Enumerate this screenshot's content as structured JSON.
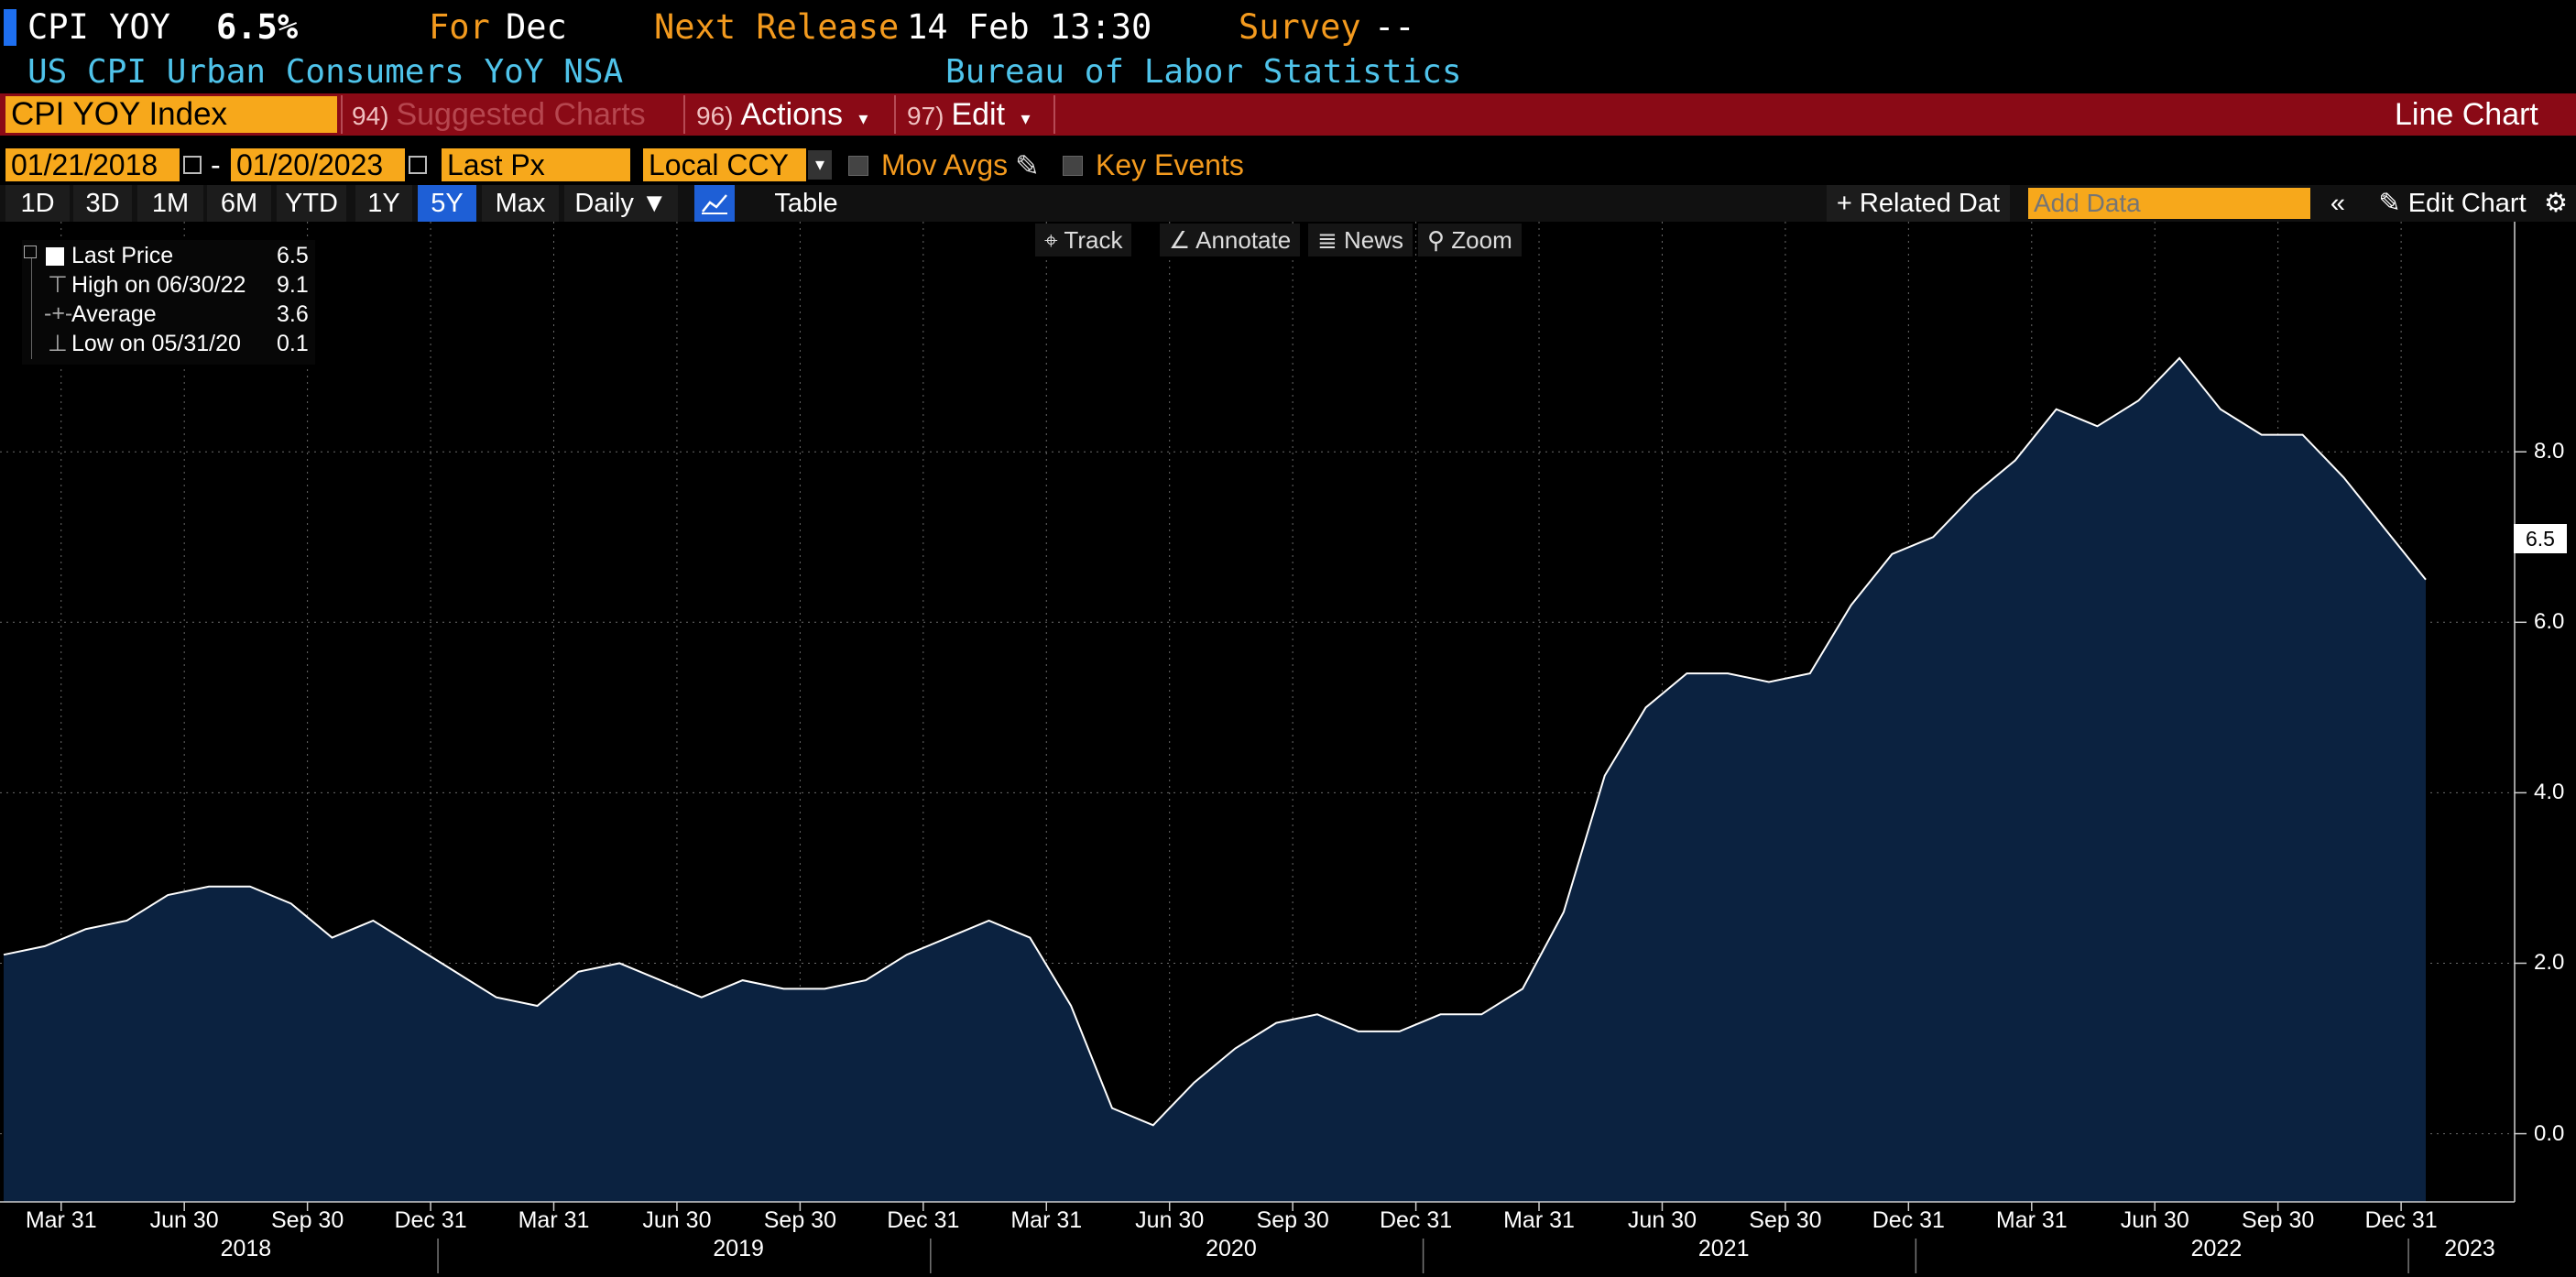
{
  "header": {
    "ticker": "CPI YOY",
    "value": "6.5%",
    "for_label": "For",
    "for_value": "Dec",
    "next_release_label": "Next Release",
    "next_release_value": "14 Feb 13:30",
    "survey_label": "Survey",
    "survey_value": "--",
    "description": "US CPI Urban Consumers YoY NSA",
    "source": "Bureau of Labor Statistics"
  },
  "command_bar": {
    "security": "CPI YOY Index",
    "suggested_num": "94)",
    "suggested_label": "Suggested Charts",
    "actions_num": "96)",
    "actions_label": "Actions",
    "edit_num": "97)",
    "edit_label": "Edit",
    "chart_type": "Line Chart"
  },
  "controls": {
    "start_date": "01/21/2018",
    "dash": "-",
    "end_date": "01/20/2023",
    "field": "Last Px",
    "currency": "Local CCY",
    "mov_avgs": "Mov Avgs",
    "key_events": "Key Events"
  },
  "range_buttons": [
    "1D",
    "3D",
    "1M",
    "6M",
    "YTD",
    "1Y",
    "5Y",
    "Max"
  ],
  "active_range": "5Y",
  "frequency": "Daily",
  "table_label": "Table",
  "related_data": "Related Dat",
  "add_data_placeholder": "Add Data",
  "edit_chart": "Edit Chart",
  "tools": {
    "track": "Track",
    "annotate": "Annotate",
    "news": "News",
    "zoom": "Zoom"
  },
  "legend": {
    "last_label": "Last Price",
    "last_value": "6.5",
    "high_label": "High on 06/30/22",
    "high_value": "9.1",
    "avg_label": "Average",
    "avg_value": "3.6",
    "low_label": "Low on 05/31/20",
    "low_value": "0.1"
  },
  "last_badge": "6.5",
  "colors": {
    "accent_orange": "#f7a81b",
    "command_red": "#8a0a16",
    "area_fill": "#0b2240",
    "line": "#ffffff",
    "active_blue": "#1e5fd6"
  },
  "chart_data": {
    "type": "area",
    "title": "",
    "xlabel": "",
    "ylabel": "",
    "ylim": [
      -0.8,
      10.7
    ],
    "yticks": [
      "0.0",
      "2.0",
      "4.0",
      "6.0",
      "8.0"
    ],
    "grid": true,
    "x_tick_labels": [
      "Mar 31",
      "Jun 30",
      "Sep 30",
      "Dec 31",
      "Mar 31",
      "Jun 30",
      "Sep 30",
      "Dec 31",
      "Mar 31",
      "Jun 30",
      "Sep 30",
      "Dec 31",
      "Mar 31",
      "Jun 30",
      "Sep 30",
      "Dec 31",
      "Mar 31",
      "Jun 30",
      "Sep 30",
      "Dec 31"
    ],
    "year_labels": [
      "2018",
      "2019",
      "2020",
      "2021",
      "2022",
      "2023"
    ],
    "series": [
      {
        "values": [
          2.1,
          2.2,
          2.4,
          2.5,
          2.8,
          2.9,
          2.9,
          2.7,
          2.3,
          2.5,
          2.2,
          1.9,
          1.6,
          1.5,
          1.9,
          2.0,
          1.8,
          1.6,
          1.8,
          1.7,
          1.7,
          1.8,
          2.1,
          2.3,
          2.5,
          2.3,
          1.5,
          0.3,
          0.1,
          0.6,
          1.0,
          1.3,
          1.4,
          1.2,
          1.2,
          1.4,
          1.4,
          1.7,
          2.6,
          4.2,
          5.0,
          5.4,
          5.4,
          5.3,
          5.4,
          6.2,
          6.8,
          7.0,
          7.5,
          7.9,
          8.5,
          8.3,
          8.6,
          9.1,
          8.5,
          8.2,
          8.2,
          7.7,
          7.1,
          6.5
        ]
      }
    ]
  }
}
